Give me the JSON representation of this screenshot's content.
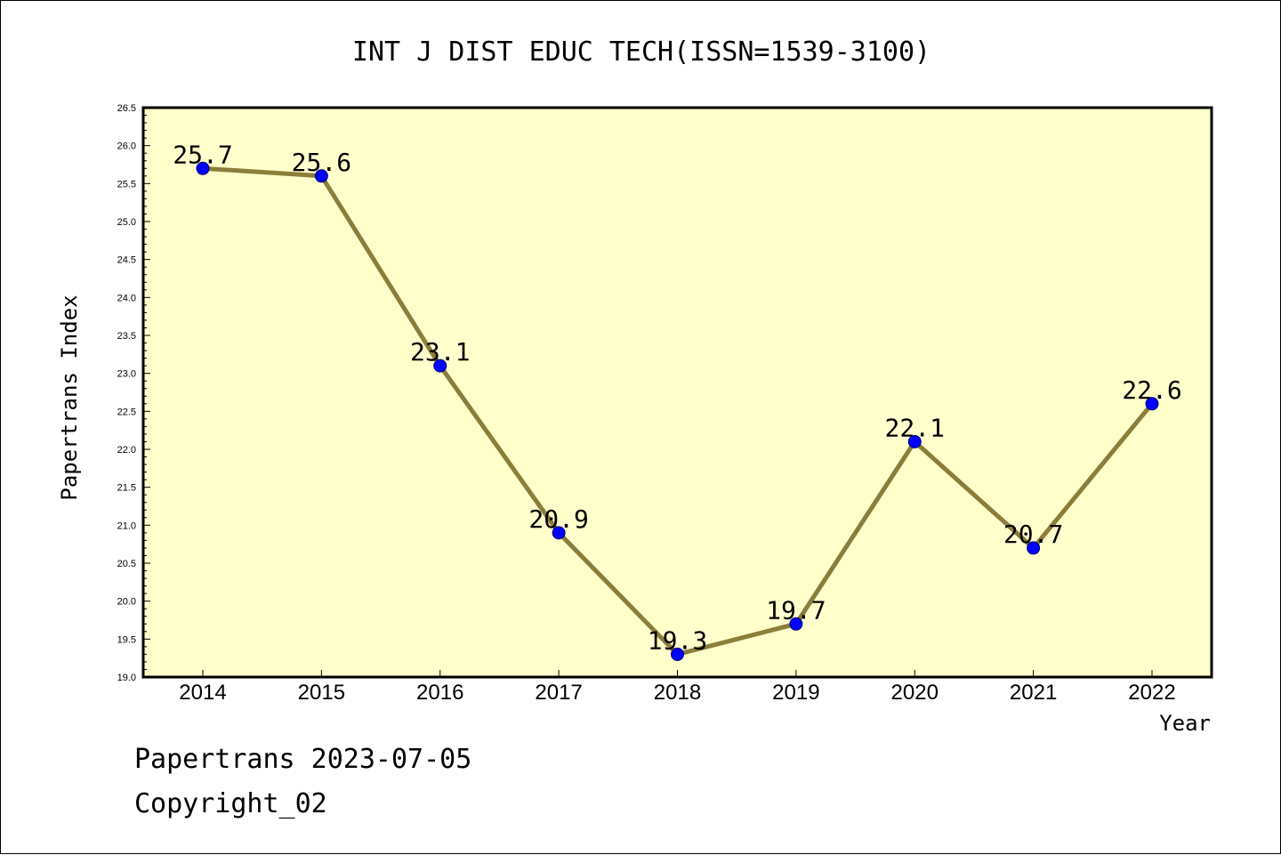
{
  "chart_data": {
    "type": "line",
    "title": "INT J DIST EDUC TECH(ISSN=1539-3100)",
    "xlabel": "Year",
    "ylabel": "Papertrans Index",
    "categories": [
      "2014",
      "2015",
      "2016",
      "2017",
      "2018",
      "2019",
      "2020",
      "2021",
      "2022"
    ],
    "values": [
      25.7,
      25.6,
      23.1,
      20.9,
      19.3,
      19.7,
      22.1,
      20.7,
      22.6
    ],
    "data_labels": [
      "25.7",
      "25.6",
      "23.1",
      "20.9",
      "19.3",
      "19.7",
      "22.1",
      "20.7",
      "22.6"
    ],
    "ylim": [
      19.0,
      26.5
    ],
    "y_ticks": [
      "19.0",
      "19.5",
      "20.0",
      "20.5",
      "21.0",
      "21.5",
      "22.0",
      "22.5",
      "23.0",
      "23.5",
      "24.0",
      "24.5",
      "25.0",
      "25.5",
      "26.0",
      "26.5"
    ],
    "grid": false,
    "legend": "none",
    "colors": {
      "plot_background": "#ffffcc",
      "line": "#8b7d3a",
      "marker": "#0000ff"
    }
  },
  "footer": {
    "line1": "Papertrans 2023-07-05",
    "line2": "Copyright_02"
  }
}
